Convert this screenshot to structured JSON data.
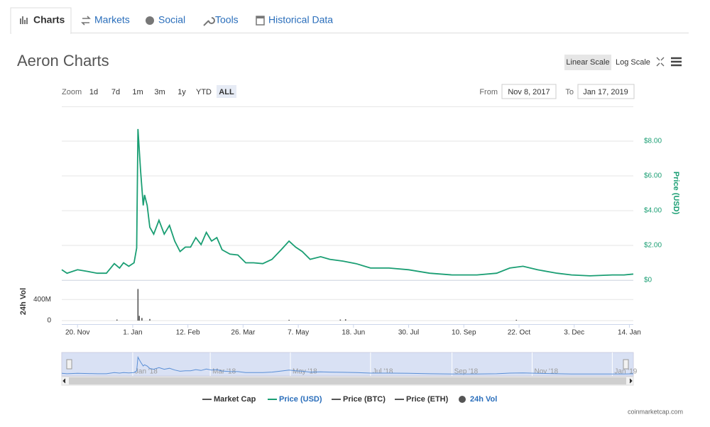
{
  "tabs": [
    "Charts",
    "Markets",
    "Social",
    "Tools",
    "Historical Data"
  ],
  "chart_data": {
    "type": "line",
    "title": "Aeron Charts",
    "scale_buttons": [
      "Linear Scale",
      "Log Scale"
    ],
    "zoom_label": "Zoom",
    "zoom_options": [
      "1d",
      "7d",
      "1m",
      "3m",
      "1y",
      "YTD",
      "ALL"
    ],
    "zoom_selected": "ALL",
    "from_label": "From",
    "from": "Nov 8, 2017",
    "to_label": "To",
    "to": "Jan 17, 2019",
    "y_label": "Price (USD)",
    "y2_label": "24h Vol",
    "xlim": [
      "2017-11-08",
      "2019-01-17"
    ],
    "xticks": [
      {
        "value": "2017-11-20",
        "label": "20. Nov"
      },
      {
        "value": "2018-01-01",
        "label": "1. Jan"
      },
      {
        "value": "2018-02-12",
        "label": "12. Feb"
      },
      {
        "value": "2018-03-26",
        "label": "26. Mar"
      },
      {
        "value": "2018-05-07",
        "label": "7. May"
      },
      {
        "value": "2018-06-18",
        "label": "18. Jun"
      },
      {
        "value": "2018-07-30",
        "label": "30. Jul"
      },
      {
        "value": "2018-09-10",
        "label": "10. Sep"
      },
      {
        "value": "2018-10-22",
        "label": "22. Oct"
      },
      {
        "value": "2018-12-03",
        "label": "3. Dec"
      },
      {
        "value": "2019-01-14",
        "label": "14. Jan"
      }
    ],
    "ylim": [
      0,
      10
    ],
    "yticks": [
      {
        "value": 0,
        "label": "$0"
      },
      {
        "value": 2,
        "label": "$2.00"
      },
      {
        "value": 4,
        "label": "$4.00"
      },
      {
        "value": 6,
        "label": "$6.00"
      },
      {
        "value": 8,
        "label": "$8.00"
      }
    ],
    "y2lim": [
      0,
      700000000
    ],
    "y2ticks": [
      0,
      {
        "value": 400000000,
        "label": "400M"
      }
    ],
    "grid": true,
    "navigator_ticks": [
      {
        "value": "2018-01-01",
        "label": "Jan '18"
      },
      {
        "value": "2018-03-01",
        "label": "Mar '18"
      },
      {
        "value": "2018-05-01",
        "label": "May '18"
      },
      {
        "value": "2018-07-01",
        "label": "Jul '18"
      },
      {
        "value": "2018-09-01",
        "label": "Sep '18"
      },
      {
        "value": "2018-11-01",
        "label": "Nov '18"
      },
      {
        "value": "2019-01-01",
        "label": "Jan '19"
      }
    ],
    "series": [
      {
        "name": "Market Cap",
        "color": "#555555",
        "active": false
      },
      {
        "name": "Price (USD)",
        "color": "#1a9e73",
        "active": true,
        "x": [
          "2017-11-08",
          "2017-11-12",
          "2017-11-20",
          "2017-11-28",
          "2017-12-05",
          "2017-12-12",
          "2017-12-18",
          "2017-12-22",
          "2017-12-25",
          "2017-12-29",
          "2018-01-02",
          "2018-01-04",
          "2018-01-05",
          "2018-01-07",
          "2018-01-09",
          "2018-01-10",
          "2018-01-12",
          "2018-01-14",
          "2018-01-17",
          "2018-01-21",
          "2018-01-25",
          "2018-01-29",
          "2018-02-02",
          "2018-02-06",
          "2018-02-10",
          "2018-02-14",
          "2018-02-18",
          "2018-02-22",
          "2018-02-26",
          "2018-03-02",
          "2018-03-06",
          "2018-03-10",
          "2018-03-16",
          "2018-03-22",
          "2018-03-28",
          "2018-04-03",
          "2018-04-10",
          "2018-04-17",
          "2018-04-24",
          "2018-04-30",
          "2018-05-05",
          "2018-05-10",
          "2018-05-16",
          "2018-05-24",
          "2018-05-31",
          "2018-06-10",
          "2018-06-20",
          "2018-07-01",
          "2018-07-15",
          "2018-07-30",
          "2018-08-15",
          "2018-09-01",
          "2018-09-20",
          "2018-10-05",
          "2018-10-15",
          "2018-10-25",
          "2018-11-05",
          "2018-11-20",
          "2018-12-01",
          "2018-12-15",
          "2019-01-01",
          "2019-01-10",
          "2019-01-17"
        ],
        "values": [
          0.6,
          0.4,
          0.6,
          0.5,
          0.4,
          0.4,
          0.95,
          0.7,
          1.0,
          0.8,
          1.0,
          1.85,
          8.7,
          6.3,
          4.3,
          4.9,
          4.3,
          3.05,
          2.65,
          3.45,
          2.65,
          3.15,
          2.25,
          1.65,
          1.9,
          1.9,
          2.45,
          2.05,
          2.75,
          2.25,
          2.45,
          1.75,
          1.5,
          1.45,
          1.0,
          1.0,
          0.95,
          1.2,
          1.75,
          2.25,
          1.9,
          1.65,
          1.2,
          1.35,
          1.2,
          1.1,
          0.95,
          0.7,
          0.7,
          0.6,
          0.4,
          0.3,
          0.3,
          0.4,
          0.7,
          0.8,
          0.6,
          0.4,
          0.3,
          0.25,
          0.3,
          0.3,
          0.35
        ]
      },
      {
        "name": "Price (BTC)",
        "color": "#555555",
        "active": false
      },
      {
        "name": "Price (ETH)",
        "color": "#555555",
        "active": false
      },
      {
        "name": "24h Vol",
        "color": "#555555",
        "active": true,
        "axis": "y2",
        "x": [
          "2017-12-20",
          "2018-01-05",
          "2018-01-06",
          "2018-01-08",
          "2018-01-14",
          "2018-04-30",
          "2018-06-08",
          "2018-06-12",
          "2018-10-20"
        ],
        "values": [
          20000000,
          600000000,
          90000000,
          50000000,
          30000000,
          15000000,
          20000000,
          25000000,
          15000000
        ]
      }
    ],
    "credit": "coinmarketcap.com"
  }
}
